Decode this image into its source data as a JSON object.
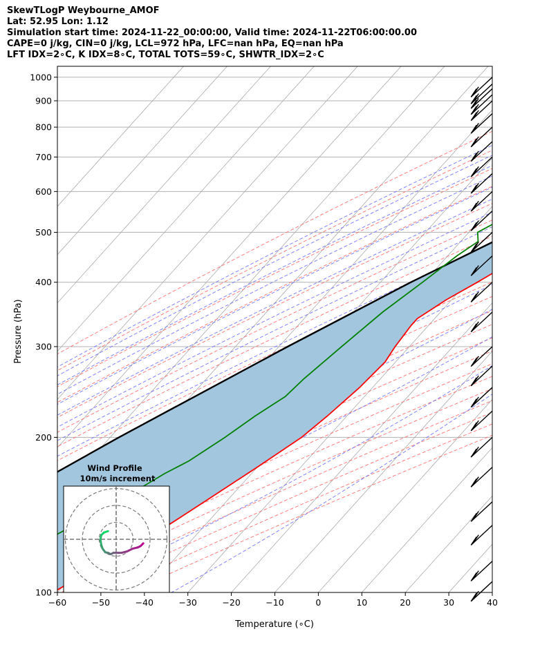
{
  "header": {
    "line1": "SkewTLogP Weybourne_AMOF",
    "line2": "Lat: 52.95   Lon: 1.12",
    "line3": "Simulation start time: 2024-11-22_00:00:00, Valid time: 2024-11-22T06:00:00.00",
    "line4": "CAPE=0 j/kg, CIN=0 j/kg, LCL=972 hPa, LFC=nan hPa, EQ=nan hPa",
    "line5": "LFT IDX=2∘C, K IDX=8∘C, TOTAL TOTS=59∘C, SHWTR_IDX=2∘C"
  },
  "chart_data": {
    "type": "line",
    "subtype": "skew-T log-P diagram",
    "xlabel": "Temperature (∘C)",
    "ylabel": "Pressure (hPa)",
    "xlim": [
      -60,
      40
    ],
    "ylim": [
      1050,
      100
    ],
    "y_scale": "log",
    "x_ticks": [
      -60,
      -50,
      -40,
      -30,
      -20,
      -10,
      0,
      10,
      20,
      30,
      40
    ],
    "x_tick_labels": [
      "−60",
      "−50",
      "−40",
      "−30",
      "−20",
      "−10",
      "0",
      "10",
      "20",
      "30",
      "40"
    ],
    "y_ticks": [
      1000,
      900,
      800,
      700,
      600,
      500,
      400,
      300,
      200,
      100
    ],
    "y_tick_labels": [
      "1000",
      "900",
      "800",
      "700",
      "600",
      "500",
      "400",
      "300",
      "200",
      "100"
    ],
    "grid": true,
    "colors": {
      "temperature": "#ff0000",
      "dewpoint": "#008000",
      "parcel": "#000000",
      "cape_fill": "#a3c6df",
      "dry_adiabats": "#ff6666",
      "moist_adiabats": "#6b6bff",
      "mixing_ratio": "#9966cc",
      "isotherms": "#aaaaaa"
    },
    "series": [
      {
        "key": "temperature",
        "points": [
          [
            1000,
            2.6
          ],
          [
            970,
            2.6
          ],
          [
            950,
            2.4
          ],
          [
            925,
            2.0
          ],
          [
            900,
            1.2
          ],
          [
            850,
            -0.2
          ],
          [
            800,
            -1.5
          ],
          [
            700,
            -4.8
          ],
          [
            600,
            -10.4
          ],
          [
            500,
            -18.2
          ],
          [
            450,
            -22.9
          ],
          [
            400,
            -27.7
          ],
          [
            370,
            -31.2
          ],
          [
            340,
            -34.0
          ],
          [
            330,
            -34.0
          ],
          [
            300,
            -33.3
          ],
          [
            280,
            -32.4
          ],
          [
            250,
            -33.0
          ],
          [
            220,
            -34.5
          ],
          [
            200,
            -36.0
          ],
          [
            175,
            -40.0
          ],
          [
            150,
            -45.0
          ],
          [
            125,
            -51.0
          ],
          [
            110,
            -57.0
          ],
          [
            100,
            -61.0
          ]
        ]
      },
      {
        "key": "dewpoint",
        "points": [
          [
            1000,
            1.3
          ],
          [
            970,
            1.0
          ],
          [
            950,
            -2.1
          ],
          [
            900,
            -7.5
          ],
          [
            850,
            -11.0
          ],
          [
            800,
            -13.0
          ],
          [
            750,
            -17.6
          ],
          [
            700,
            -24.0
          ],
          [
            650,
            -29.5
          ],
          [
            600,
            -31.0
          ],
          [
            550,
            -33.3
          ],
          [
            500,
            -38.0
          ],
          [
            480,
            -36.0
          ],
          [
            450,
            -37.9
          ],
          [
            400,
            -40.3
          ],
          [
            350,
            -43.3
          ],
          [
            300,
            -45.6
          ],
          [
            260,
            -47.6
          ],
          [
            240,
            -48.2
          ],
          [
            220,
            -51.1
          ],
          [
            200,
            -53.6
          ],
          [
            180,
            -57.0
          ],
          [
            170,
            -60.0
          ],
          [
            150,
            -65.0
          ],
          [
            130,
            -72.0
          ],
          [
            100,
            -78.0
          ]
        ]
      },
      {
        "key": "parcel",
        "points": [
          [
            1000,
            2.6
          ],
          [
            972,
            0.3
          ],
          [
            950,
            -0.4
          ],
          [
            900,
            -2.2
          ],
          [
            850,
            -4.5
          ],
          [
            800,
            -7.0
          ],
          [
            700,
            -13.0
          ],
          [
            600,
            -20.0
          ],
          [
            500,
            -30.0
          ],
          [
            400,
            -43.0
          ],
          [
            300,
            -58.0
          ],
          [
            200,
            -78.0
          ],
          [
            150,
            -91.0
          ],
          [
            100,
            -110.0
          ]
        ]
      }
    ],
    "wind_barbs_hpa": [
      1000,
      970,
      950,
      925,
      900,
      850,
      800,
      750,
      700,
      650,
      600,
      550,
      500,
      450,
      400,
      350,
      300,
      275,
      250,
      225,
      200,
      175,
      150,
      135,
      115,
      105
    ],
    "hodograph": {
      "title": "Wind Profile",
      "subtitle": "10m/s increment",
      "rings": [
        10,
        20,
        30
      ],
      "points": [
        [
          10,
          -1.5
        ],
        [
          9,
          -2.5
        ],
        [
          8,
          -3
        ],
        [
          6,
          -3.5
        ],
        [
          4,
          -4.5
        ],
        [
          2,
          -5
        ],
        [
          0,
          -5
        ],
        [
          -1,
          -5
        ],
        [
          -2,
          -5.5
        ],
        [
          -3,
          -5
        ],
        [
          -4,
          -4.8
        ],
        [
          -5,
          -3.5
        ],
        [
          -5.5,
          -2
        ],
        [
          -5.8,
          0
        ],
        [
          -5.5,
          1.5
        ],
        [
          -4.5,
          2.5
        ],
        [
          -3,
          3
        ]
      ]
    }
  }
}
